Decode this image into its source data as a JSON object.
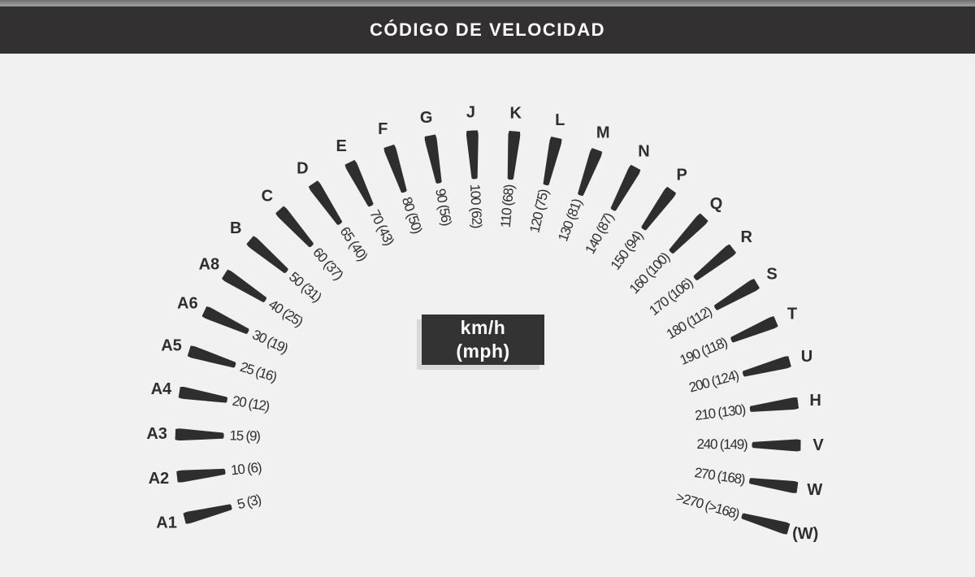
{
  "header": {
    "title": "CÓDIGO DE VELOCIDAD"
  },
  "unit_box": {
    "line1": "km/h",
    "line2": "(mph)"
  },
  "colors": {
    "ink": "#2e2e2e",
    "background": "#f1f1f1",
    "header_bg": "#323031",
    "header_text": "#ffffff",
    "top_strip": "#8f8f8f",
    "unit_box_bg": "#333333",
    "unit_box_shadow": "#d8d8d8"
  },
  "chart_data": {
    "type": "gauge",
    "title": "CÓDIGO DE VELOCIDAD",
    "units": {
      "primary": "km/h",
      "secondary": "mph"
    },
    "layout": {
      "arc_start_deg": -104,
      "arc_end_deg": 106,
      "tick_count": 28
    },
    "entries": [
      {
        "code": "A1",
        "kmh": "5",
        "mph": "3",
        "label": "5 (3)"
      },
      {
        "code": "A2",
        "kmh": "10",
        "mph": "6",
        "label": "10 (6)"
      },
      {
        "code": "A3",
        "kmh": "15",
        "mph": "9",
        "label": "15 (9)"
      },
      {
        "code": "A4",
        "kmh": "20",
        "mph": "12",
        "label": "20 (12)"
      },
      {
        "code": "A5",
        "kmh": "25",
        "mph": "16",
        "label": "25 (16)"
      },
      {
        "code": "A6",
        "kmh": "30",
        "mph": "19",
        "label": "30 (19)"
      },
      {
        "code": "A8",
        "kmh": "40",
        "mph": "25",
        "label": "40 (25)"
      },
      {
        "code": "B",
        "kmh": "50",
        "mph": "31",
        "label": "50 (31)"
      },
      {
        "code": "C",
        "kmh": "60",
        "mph": "37",
        "label": "60 (37)"
      },
      {
        "code": "D",
        "kmh": "65",
        "mph": "40",
        "label": "65 (40)"
      },
      {
        "code": "E",
        "kmh": "70",
        "mph": "43",
        "label": "70 (43)"
      },
      {
        "code": "F",
        "kmh": "80",
        "mph": "50",
        "label": "80 (50)"
      },
      {
        "code": "G",
        "kmh": "90",
        "mph": "56",
        "label": "90 (56)"
      },
      {
        "code": "J",
        "kmh": "100",
        "mph": "62",
        "label": "100 (62)"
      },
      {
        "code": "K",
        "kmh": "110",
        "mph": "68",
        "label": "110 (68)"
      },
      {
        "code": "L",
        "kmh": "120",
        "mph": "75",
        "label": "120 (75)"
      },
      {
        "code": "M",
        "kmh": "130",
        "mph": "81",
        "label": "130 (81)"
      },
      {
        "code": "N",
        "kmh": "140",
        "mph": "87",
        "label": "140 (87)"
      },
      {
        "code": "P",
        "kmh": "150",
        "mph": "94",
        "label": "150 (94)"
      },
      {
        "code": "Q",
        "kmh": "160",
        "mph": "100",
        "label": "160 (100)"
      },
      {
        "code": "R",
        "kmh": "170",
        "mph": "106",
        "label": "170 (106)"
      },
      {
        "code": "S",
        "kmh": "180",
        "mph": "112",
        "label": "180 (112)"
      },
      {
        "code": "T",
        "kmh": "190",
        "mph": "118",
        "label": "190 (118)"
      },
      {
        "code": "U",
        "kmh": "200",
        "mph": "124",
        "label": "200 (124)"
      },
      {
        "code": "H",
        "kmh": "210",
        "mph": "130",
        "label": "210 (130)"
      },
      {
        "code": "V",
        "kmh": "240",
        "mph": "149",
        "label": "240 (149)"
      },
      {
        "code": "W",
        "kmh": "270",
        "mph": "168",
        "label": "270 (168)"
      },
      {
        "code": "(W)",
        "kmh": ">270",
        "mph": ">168",
        "label": ">270 (>168)"
      }
    ]
  }
}
